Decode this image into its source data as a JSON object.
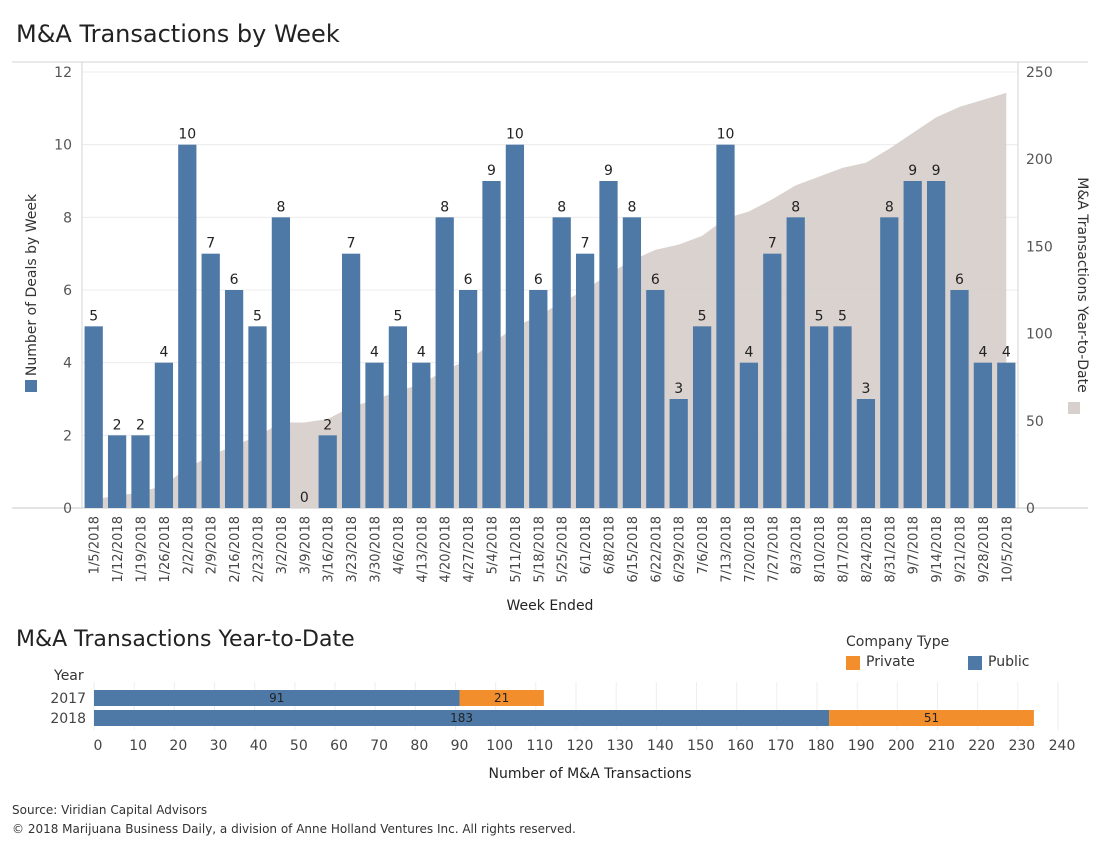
{
  "chart_data": [
    {
      "type": "bar",
      "title": "M&A Transactions by Week",
      "xlabel": "Week Ended",
      "ylabel": "Number of Deals by Week",
      "ylabel2": "M&A Transactions Year-to-Date",
      "ylim": [
        0,
        12
      ],
      "y2lim": [
        0,
        250
      ],
      "yticks": [
        0,
        2,
        4,
        6,
        8,
        10,
        12
      ],
      "y2ticks": [
        0,
        50,
        100,
        150,
        200,
        250
      ],
      "categories": [
        "1/5/2018",
        "1/12/2018",
        "1/19/2018",
        "1/26/2018",
        "2/2/2018",
        "2/9/2018",
        "2/16/2018",
        "2/23/2018",
        "3/2/2018",
        "3/9/2018",
        "3/16/2018",
        "3/23/2018",
        "3/30/2018",
        "4/6/2018",
        "4/13/2018",
        "4/20/2018",
        "4/27/2018",
        "5/4/2018",
        "5/11/2018",
        "5/18/2018",
        "5/25/2018",
        "6/1/2018",
        "6/8/2018",
        "6/15/2018",
        "6/22/2018",
        "6/29/2018",
        "7/6/2018",
        "7/13/2018",
        "7/20/2018",
        "7/27/2018",
        "8/3/2018",
        "8/10/2018",
        "8/17/2018",
        "8/24/2018",
        "8/31/2018",
        "9/7/2018",
        "9/14/2018",
        "9/21/2018",
        "9/28/2018",
        "10/5/2018"
      ],
      "series": [
        {
          "values": [
            5,
            2,
            2,
            4,
            10,
            7,
            6,
            5,
            8,
            0,
            2,
            7,
            4,
            5,
            4,
            8,
            6,
            9,
            10,
            6,
            8,
            7,
            9,
            8,
            6,
            3,
            5,
            10,
            4,
            7,
            8,
            5,
            5,
            3,
            8,
            9,
            9,
            6,
            4,
            4
          ],
          "color": "#4e79a7"
        },
        {
          "values": [
            5,
            7,
            9,
            13,
            23,
            30,
            36,
            41,
            49,
            49,
            51,
            58,
            62,
            67,
            71,
            79,
            85,
            94,
            104,
            110,
            118,
            125,
            134,
            142,
            148,
            151,
            156,
            166,
            170,
            177,
            185,
            190,
            195,
            198,
            206,
            215,
            224,
            230,
            234,
            238
          ],
          "color": "#d7d0cc",
          "axis": "right",
          "kind": "area"
        }
      ]
    },
    {
      "type": "bar",
      "title": "M&A Transactions Year-to-Date",
      "orientation": "horizontal",
      "stacked": true,
      "xlabel": "Number of M&A Transactions",
      "row_header": "Year",
      "categories": [
        "2017",
        "2018"
      ],
      "xlim": [
        0,
        240
      ],
      "xticks": [
        0,
        10,
        20,
        30,
        40,
        50,
        60,
        70,
        80,
        90,
        100,
        110,
        120,
        130,
        140,
        150,
        160,
        170,
        180,
        190,
        200,
        210,
        220,
        230,
        240
      ],
      "legend_title": "Company Type",
      "legend": [
        {
          "name": "Private",
          "color": "#f28e2b"
        },
        {
          "name": "Public",
          "color": "#4e79a7"
        }
      ],
      "series": [
        {
          "name": "Public",
          "values": [
            91,
            183
          ],
          "color": "#4e79a7"
        },
        {
          "name": "Private",
          "values": [
            21,
            51
          ],
          "color": "#f28e2b"
        }
      ]
    }
  ],
  "footer": {
    "source": "Source: Viridian Capital Advisors",
    "copyright": "© 2018 Marijuana Business Daily, a division of Anne Holland Ventures Inc. All rights reserved."
  }
}
